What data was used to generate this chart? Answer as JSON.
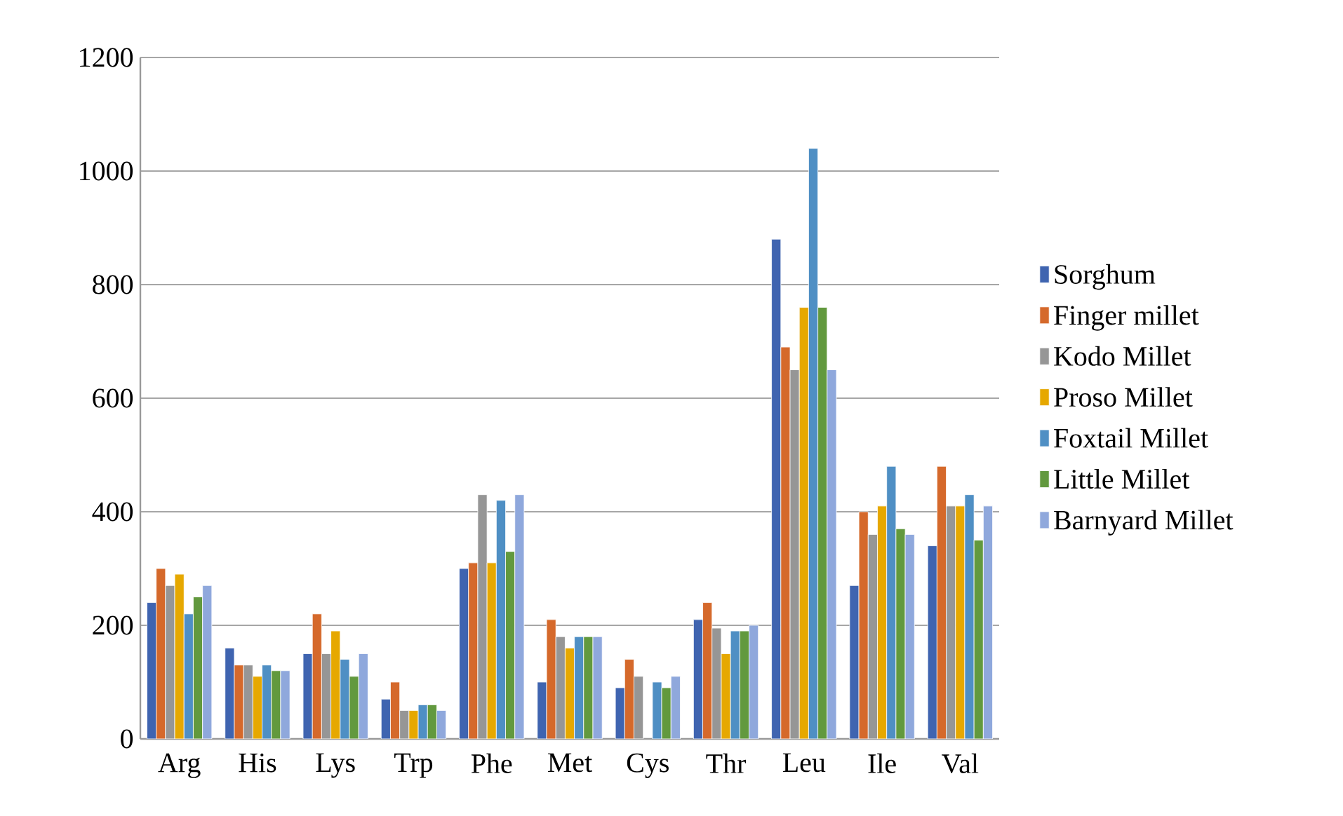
{
  "chart_data": {
    "type": "bar",
    "categories": [
      "Arg",
      "His",
      "Lys",
      "Trp",
      "Phe",
      "Met",
      "Cys",
      "Thr",
      "Leu",
      "Ile",
      "Val"
    ],
    "series": [
      {
        "name": "Sorghum",
        "color": "#3f64b0",
        "values": [
          240,
          160,
          150,
          70,
          300,
          100,
          90,
          210,
          880,
          270,
          340
        ]
      },
      {
        "name": "Finger millet",
        "color": "#d5692b",
        "values": [
          300,
          130,
          220,
          100,
          310,
          210,
          140,
          240,
          690,
          400,
          480
        ]
      },
      {
        "name": "Kodo Millet",
        "color": "#969696",
        "values": [
          270,
          130,
          150,
          50,
          430,
          180,
          110,
          195,
          650,
          360,
          410
        ]
      },
      {
        "name": "Proso Millet",
        "color": "#e6a800",
        "values": [
          290,
          110,
          190,
          50,
          310,
          160,
          null,
          150,
          760,
          410,
          410
        ]
      },
      {
        "name": "Foxtail Millet",
        "color": "#4f8fc4",
        "values": [
          220,
          130,
          140,
          60,
          420,
          180,
          100,
          190,
          1040,
          480,
          430
        ]
      },
      {
        "name": "Little Millet",
        "color": "#62993e",
        "values": [
          250,
          120,
          110,
          60,
          330,
          180,
          90,
          190,
          760,
          370,
          350
        ]
      },
      {
        "name": "Barnyard Millet",
        "color": "#8fa8dc",
        "values": [
          270,
          120,
          150,
          50,
          430,
          180,
          110,
          200,
          650,
          360,
          410
        ]
      }
    ],
    "ylim": [
      0,
      1200
    ],
    "yticks": [
      0,
      200,
      400,
      600,
      800,
      1000,
      1200
    ],
    "grid": "y",
    "legend": "right"
  }
}
